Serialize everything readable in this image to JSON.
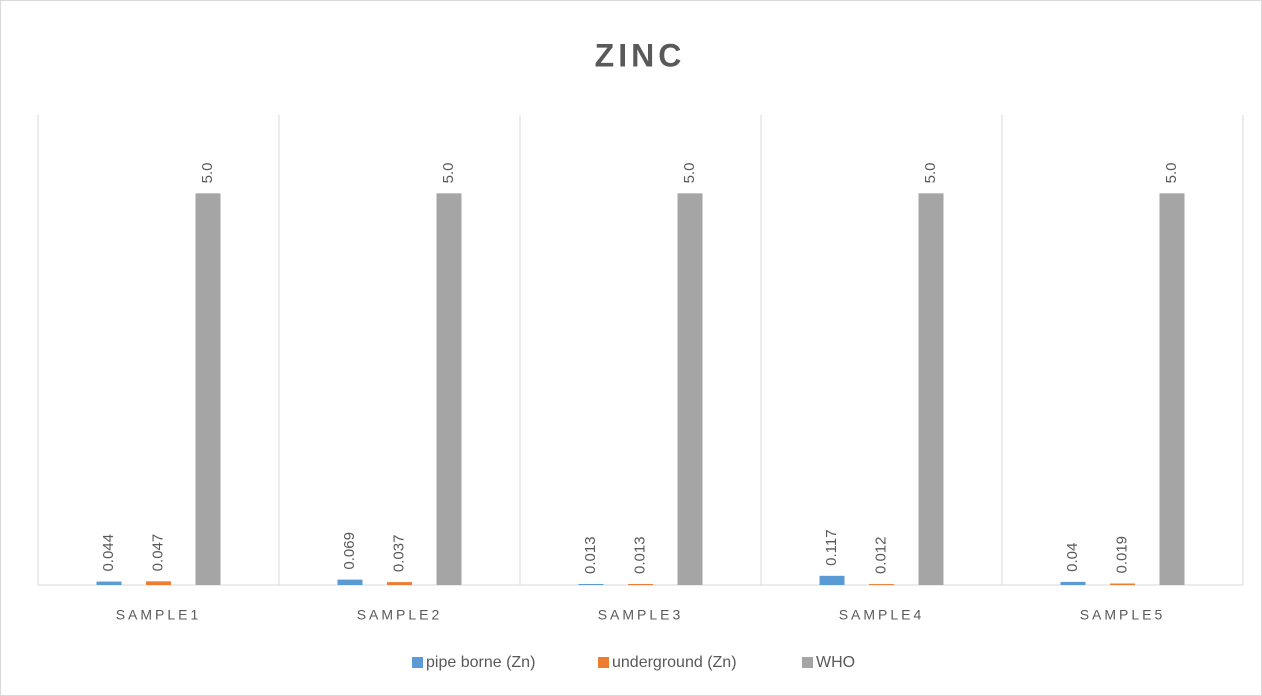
{
  "chart_data": {
    "type": "bar",
    "title": "ZINC",
    "categories": [
      "SAMPLE1",
      "SAMPLE2",
      "SAMPLE3",
      "SAMPLE4",
      "SAMPLE5"
    ],
    "series": [
      {
        "name": "pipe borne (Zn)",
        "color": "#5b9bd5",
        "values": [
          0.044,
          0.069,
          0.013,
          0.117,
          0.04
        ]
      },
      {
        "name": "underground (Zn)",
        "color": "#ed7d31",
        "values": [
          0.047,
          0.037,
          0.013,
          0.012,
          0.019
        ]
      },
      {
        "name": "WHO",
        "color": "#a5a5a5",
        "values": [
          5,
          5,
          5,
          5,
          5
        ],
        "value_labels": [
          "5.0",
          "5.0",
          "5.0",
          "5.0",
          "5.0"
        ]
      }
    ],
    "ylim": [
      0,
      6
    ],
    "legend": "bottom"
  }
}
